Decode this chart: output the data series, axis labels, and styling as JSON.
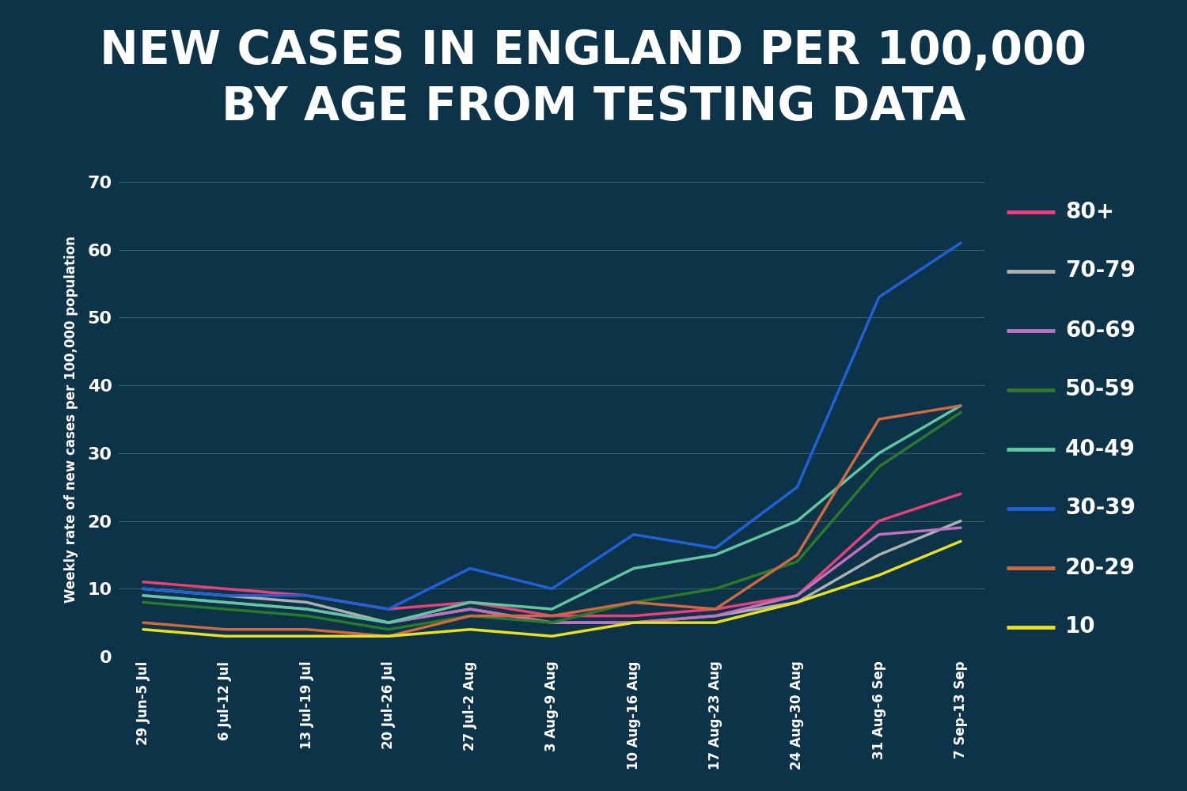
{
  "title_line1": "NEW CASES IN ENGLAND PER 100,000",
  "title_line2": "BY AGE FROM TESTING DATA",
  "ylabel": "Weekly rate of new cases per 100,000 population",
  "x_labels": [
    "29 Jun-5 Jul",
    "6 Jul-12 Jul",
    "13 Jul-19 Jul",
    "20 Jul-26 Jul",
    "27 Jul-2 Aug",
    "3 Aug-9 Aug",
    "10 Aug-16 Aug",
    "17 Aug-23 Aug",
    "24 Aug-30 Aug",
    "31 Aug-6 Sep",
    "7 Sep-13 Sep"
  ],
  "series": {
    "80+": [
      11,
      10,
      9,
      7,
      8,
      6,
      6,
      7,
      9,
      20,
      24
    ],
    "70-79": [
      10,
      9,
      8,
      5,
      7,
      5,
      5,
      6,
      8,
      15,
      20
    ],
    "60-69": [
      9,
      8,
      7,
      5,
      7,
      5,
      5,
      6,
      9,
      18,
      19
    ],
    "50-59": [
      8,
      7,
      6,
      4,
      6,
      5,
      8,
      10,
      14,
      28,
      36
    ],
    "40-49": [
      9,
      8,
      7,
      5,
      8,
      7,
      13,
      15,
      20,
      30,
      37
    ],
    "30-39": [
      10,
      9,
      9,
      7,
      13,
      10,
      18,
      16,
      25,
      53,
      61
    ],
    "20-29": [
      5,
      4,
      4,
      3,
      6,
      6,
      8,
      7,
      15,
      35,
      37
    ],
    "10": [
      4,
      3,
      3,
      3,
      4,
      3,
      5,
      5,
      8,
      12,
      17
    ]
  },
  "legend_order": [
    "80+",
    "70-79",
    "60-69",
    "50-59",
    "40-49",
    "30-39",
    "20-29",
    "10"
  ],
  "colors": {
    "80+": "#e8417a",
    "70-79": "#b0b0b0",
    "60-69": "#c070c0",
    "50-59": "#2a7a2a",
    "40-49": "#60c8a0",
    "30-39": "#2060d8",
    "20-29": "#d06840",
    "10": "#e8e020"
  },
  "bg_color": "#0d3349",
  "title_bg": "#111111",
  "text_color": "#ffffff",
  "ylim": [
    0,
    70
  ],
  "yticks": [
    0,
    10,
    20,
    30,
    40,
    50,
    60,
    70
  ],
  "line_width": 2.5
}
